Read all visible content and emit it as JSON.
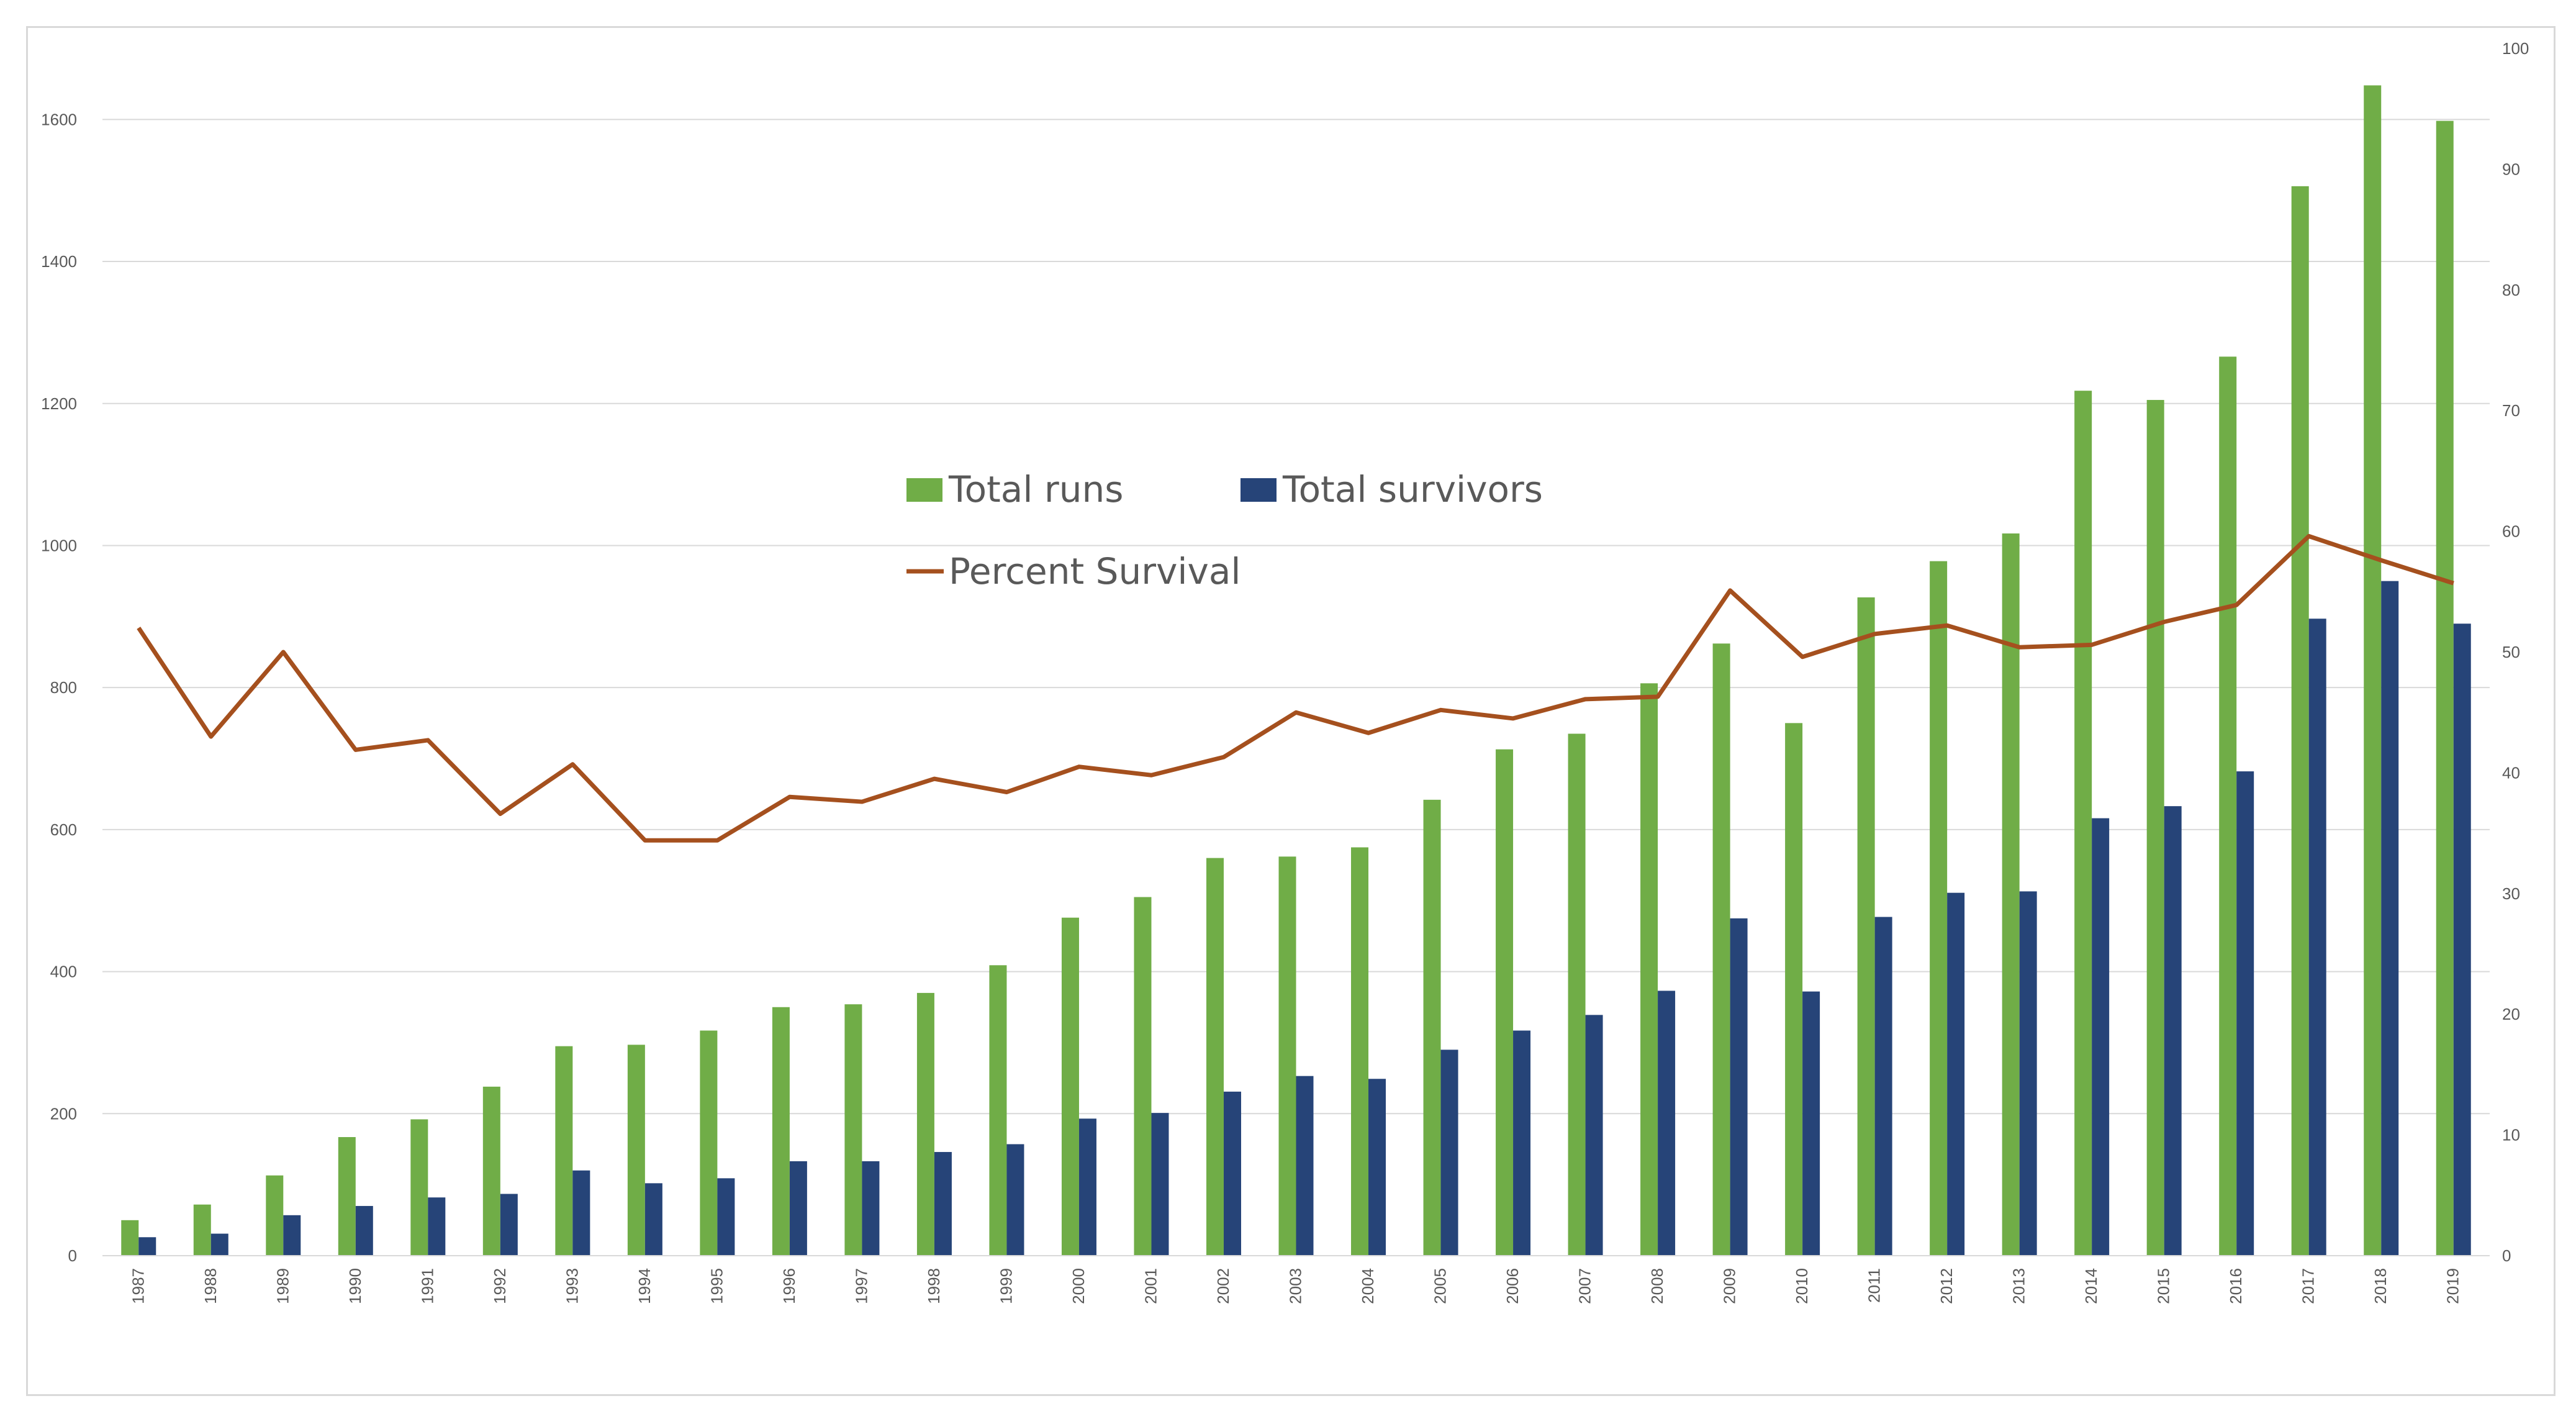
{
  "chart_data": {
    "type": "bar",
    "title": "",
    "xlabel": "",
    "ylabel": "",
    "y2label": "",
    "categories": [
      "1987",
      "1988",
      "1989",
      "1990",
      "1991",
      "1992",
      "1993",
      "1994",
      "1995",
      "1996",
      "1997",
      "1998",
      "1999",
      "2000",
      "2001",
      "2002",
      "2003",
      "2004",
      "2005",
      "2006",
      "2007",
      "2008",
      "2009",
      "2010",
      "2011",
      "2012",
      "2013",
      "2014",
      "2015",
      "2016",
      "2017",
      "2018",
      "2019"
    ],
    "series": [
      {
        "name": "Total runs",
        "type": "bar",
        "axis": "left",
        "color": "#70ad47",
        "values": [
          50,
          72,
          113,
          167,
          192,
          238,
          295,
          297,
          317,
          350,
          354,
          370,
          409,
          476,
          505,
          560,
          562,
          575,
          642,
          713,
          735,
          806,
          862,
          750,
          927,
          978,
          1017,
          1218,
          1205,
          1266,
          1506,
          1648,
          1598
        ]
      },
      {
        "name": "Total survivors",
        "type": "bar",
        "axis": "left",
        "color": "#264478",
        "values": [
          26,
          31,
          57,
          70,
          82,
          87,
          120,
          102,
          109,
          133,
          133,
          146,
          157,
          193,
          201,
          231,
          253,
          249,
          290,
          317,
          339,
          373,
          475,
          372,
          477,
          511,
          513,
          616,
          633,
          682,
          897,
          950,
          890
        ]
      },
      {
        "name": "Percent Survival",
        "type": "line",
        "axis": "right",
        "color": "#a5501e",
        "values": [
          52,
          43,
          50,
          41.9,
          42.7,
          36.6,
          40.7,
          34.4,
          34.4,
          38,
          37.6,
          39.5,
          38.4,
          40.5,
          39.8,
          41.3,
          45,
          43.3,
          45.2,
          44.5,
          46.1,
          46.3,
          55.1,
          49.6,
          51.5,
          52.2,
          50.4,
          50.6,
          52.5,
          53.9,
          59.6,
          57.6,
          55.7
        ]
      }
    ],
    "ylim": [
      0,
      1700
    ],
    "yticks": [
      "0",
      "200",
      "400",
      "600",
      "800",
      "1000",
      "1200",
      "1400",
      "1600"
    ],
    "y2lim": [
      0,
      100
    ],
    "y2ticks": [
      "0",
      "10",
      "20",
      "30",
      "40",
      "50",
      "60",
      "70",
      "80",
      "90",
      "100"
    ],
    "grid": true,
    "legend_position": "center-left"
  },
  "colors": {
    "total_runs": "#70ad47",
    "total_survivors": "#264478",
    "percent_survival": "#a5501e",
    "gridline": "#d9d9d9",
    "tick_text": "#595959"
  }
}
